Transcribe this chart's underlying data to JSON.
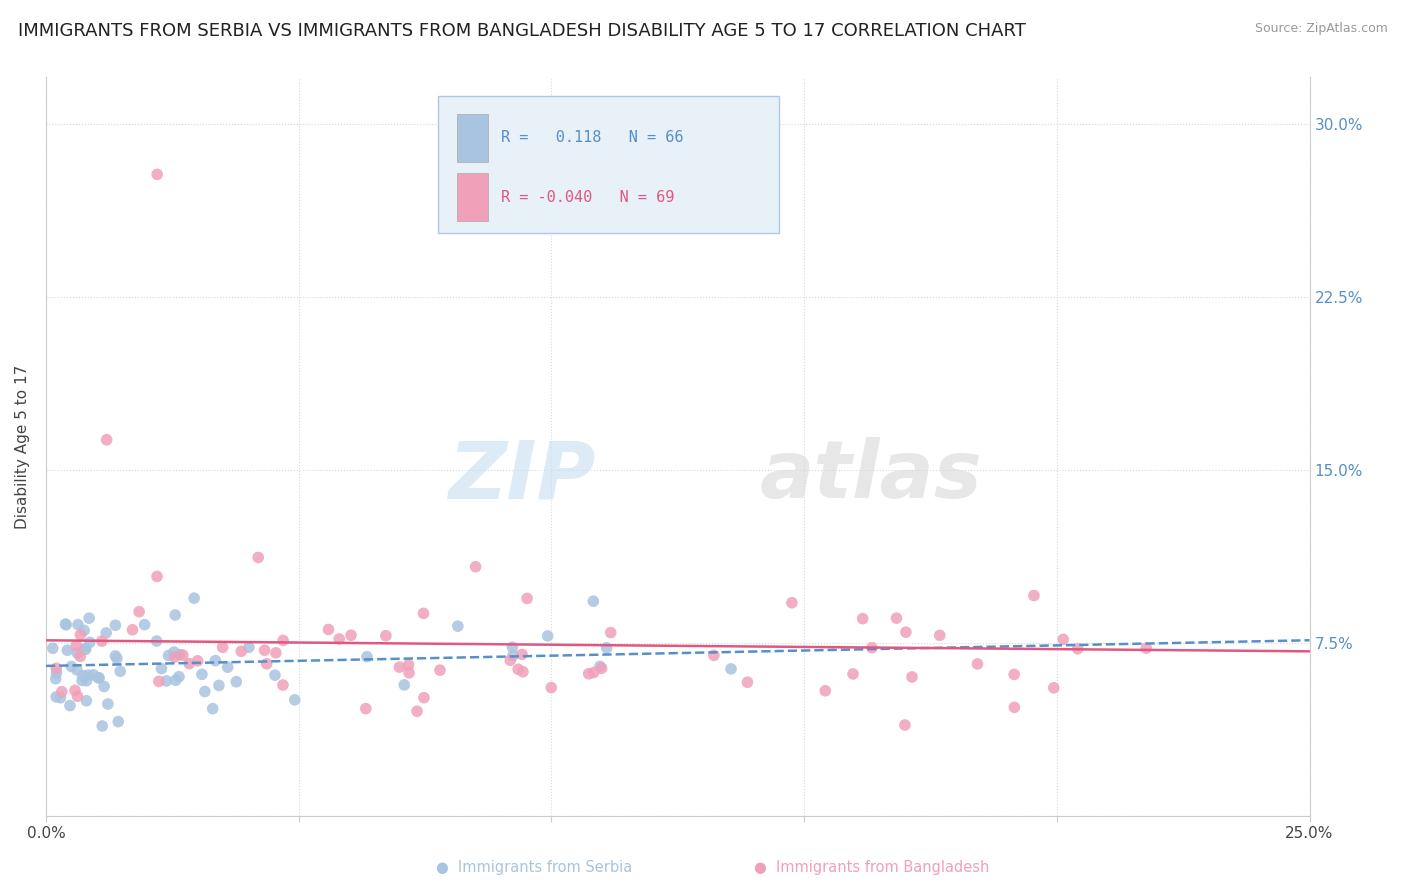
{
  "title": "IMMIGRANTS FROM SERBIA VS IMMIGRANTS FROM BANGLADESH DISABILITY AGE 5 TO 17 CORRELATION CHART",
  "source": "Source: ZipAtlas.com",
  "ylabel": "Disability Age 5 to 17",
  "xlim": [
    0.0,
    0.25
  ],
  "ylim": [
    0.0,
    0.32
  ],
  "xticks": [
    0.0,
    0.05,
    0.1,
    0.15,
    0.2,
    0.25
  ],
  "xtick_labels": [
    "0.0%",
    "",
    "",
    "",
    "",
    "25.0%"
  ],
  "yticks": [
    0.0,
    0.075,
    0.15,
    0.225,
    0.3
  ],
  "ytick_labels": [
    "",
    "7.5%",
    "15.0%",
    "22.5%",
    "30.0%"
  ],
  "serbia_color": "#a8c4e0",
  "bangladesh_color": "#f0a0b8",
  "serbia_R": 0.118,
  "serbia_N": 66,
  "bangladesh_R": -0.04,
  "bangladesh_N": 69,
  "serbia_trend_color": "#5590c8",
  "bangladesh_trend_color": "#e05880",
  "watermark_zip": "ZIP",
  "watermark_atlas": "atlas",
  "background_color": "#ffffff",
  "grid_color": "#d0d8e8",
  "title_fontsize": 13,
  "axis_label_fontsize": 11,
  "tick_fontsize": 11,
  "legend_box_color": "#e8f0f8",
  "legend_border_color": "#b0c8e8",
  "right_tick_color": "#5590c8"
}
